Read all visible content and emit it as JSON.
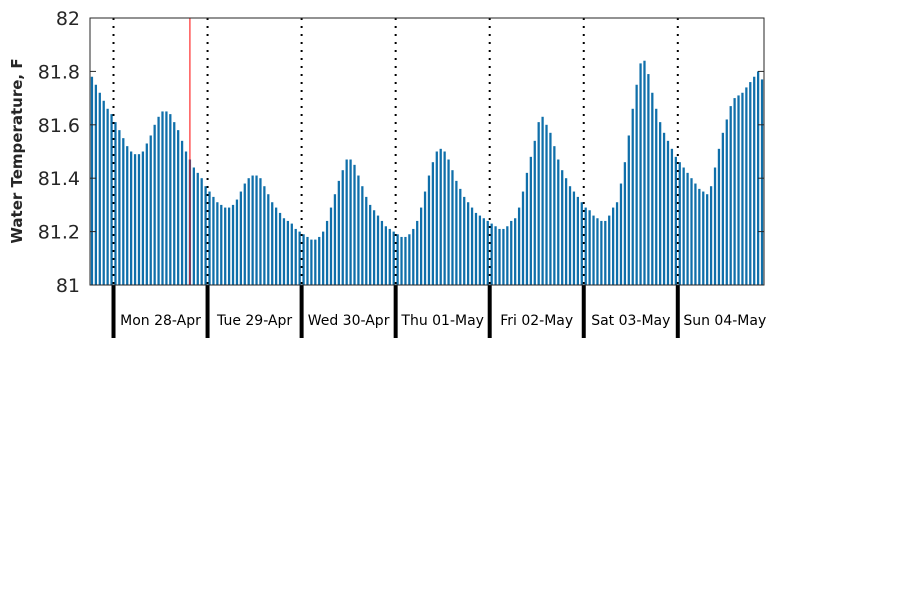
{
  "chart_data": {
    "type": "bar",
    "title": "",
    "xlabel": "",
    "ylabel": "Water Temperature, F",
    "ylim": [
      81,
      82
    ],
    "yticks": [
      "81",
      "81.2",
      "81.4",
      "81.6",
      "81.8",
      "82"
    ],
    "grid": false,
    "bar_color": "#0f6faa",
    "marker_color": "#ff0000",
    "days": [
      "Mon 28-Apr",
      "Tue 29-Apr",
      "Wed 30-Apr",
      "Thu 01-May",
      "Fri 02-May",
      "Sat 03-May",
      "Sun 04-May"
    ],
    "series": [
      {
        "values": [
          81.78,
          81.75,
          81.72,
          81.69,
          81.66,
          81.64,
          81.61,
          81.58,
          81.55,
          81.52,
          81.5,
          81.49,
          81.49,
          81.5,
          81.53,
          81.56,
          81.6,
          81.63,
          81.65,
          81.65,
          81.64,
          81.61,
          81.58,
          81.54,
          81.5,
          81.47,
          81.44,
          81.42,
          81.4,
          81.37,
          81.35,
          81.33,
          81.31,
          81.3,
          81.29,
          81.29,
          81.3,
          81.32,
          81.35,
          81.38,
          81.4,
          81.41,
          81.41,
          81.4,
          81.37,
          81.34,
          81.31,
          81.29,
          81.27,
          81.25,
          81.24,
          81.23,
          81.21,
          81.2,
          81.19,
          81.18,
          81.17,
          81.17,
          81.18,
          81.2,
          81.24,
          81.29,
          81.34,
          81.39,
          81.43,
          81.47,
          81.47,
          81.45,
          81.41,
          81.37,
          81.33,
          81.3,
          81.28,
          81.26,
          81.24,
          81.22,
          81.21,
          81.2,
          81.19,
          81.18,
          81.18,
          81.19,
          81.21,
          81.24,
          81.29,
          81.35,
          81.41,
          81.46,
          81.5,
          81.51,
          81.5,
          81.47,
          81.43,
          81.39,
          81.36,
          81.33,
          81.31,
          81.29,
          81.27,
          81.26,
          81.25,
          81.24,
          81.23,
          81.22,
          81.21,
          81.21,
          81.22,
          81.24,
          81.25,
          81.29,
          81.35,
          81.42,
          81.48,
          81.54,
          81.61,
          81.63,
          81.6,
          81.57,
          81.52,
          81.47,
          81.43,
          81.4,
          81.37,
          81.35,
          81.33,
          81.31,
          81.29,
          81.28,
          81.26,
          81.25,
          81.24,
          81.24,
          81.26,
          81.29,
          81.31,
          81.38,
          81.46,
          81.56,
          81.66,
          81.75,
          81.83,
          81.84,
          81.79,
          81.72,
          81.66,
          81.61,
          81.57,
          81.54,
          81.51,
          81.48,
          81.46,
          81.44,
          81.42,
          81.4,
          81.38,
          81.36,
          81.35,
          81.34,
          81.37,
          81.44,
          81.51,
          81.57,
          81.62,
          81.67,
          81.7,
          81.71,
          81.72,
          81.74,
          81.76,
          81.78,
          81.8,
          81.77
        ]
      }
    ],
    "marker_index": 25
  }
}
